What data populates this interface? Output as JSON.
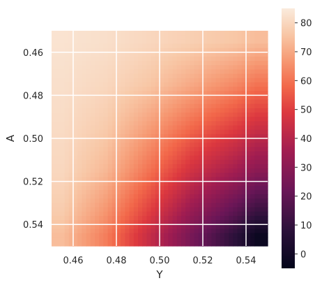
{
  "chart_data": {
    "type": "heatmap",
    "title": "",
    "xlabel": "Y",
    "ylabel": "A",
    "xlim": [
      0.45,
      0.55
    ],
    "ylim": [
      0.45,
      0.55
    ],
    "y_axis_inverted": true,
    "x_ticks": [
      0.46,
      0.48,
      0.5,
      0.52,
      0.54
    ],
    "y_ticks": [
      0.46,
      0.48,
      0.5,
      0.52,
      0.54
    ],
    "x_tick_labels": [
      "0.46",
      "0.48",
      "0.50",
      "0.52",
      "0.54"
    ],
    "y_tick_labels": [
      "0.46",
      "0.48",
      "0.50",
      "0.52",
      "0.54"
    ],
    "grid": true,
    "colormap": "rocket",
    "colorbar": {
      "vmin": -5,
      "vmax": 85,
      "ticks": [
        0,
        10,
        20,
        30,
        40,
        50,
        60,
        70,
        80
      ],
      "tick_labels": [
        "0",
        "10",
        "20",
        "30",
        "40",
        "50",
        "60",
        "70",
        "80"
      ]
    },
    "x_grid": [
      0.455,
      0.475,
      0.495,
      0.515,
      0.535,
      0.545
    ],
    "y_grid": [
      0.455,
      0.475,
      0.495,
      0.515,
      0.535,
      0.545
    ],
    "values": [
      [
        83,
        82,
        80,
        78,
        76,
        74
      ],
      [
        82,
        80,
        76,
        70,
        64,
        60
      ],
      [
        81,
        77,
        68,
        58,
        50,
        45
      ],
      [
        80,
        73,
        60,
        46,
        36,
        30
      ],
      [
        77,
        66,
        50,
        32,
        18,
        10
      ],
      [
        74,
        62,
        44,
        25,
        8,
        -2
      ]
    ]
  }
}
